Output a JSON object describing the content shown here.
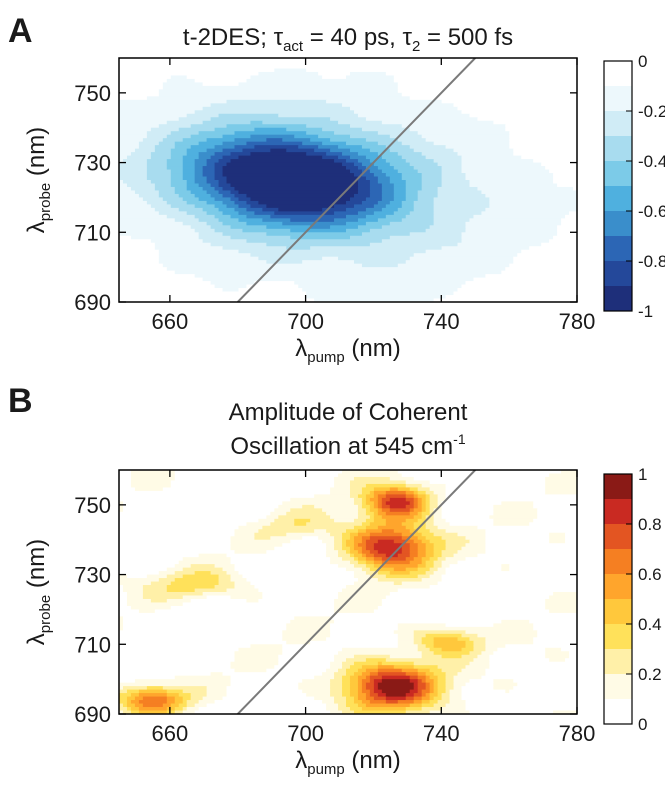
{
  "figure": {
    "panels": [
      {
        "letter": "A",
        "title": {
          "pre": "t-2DES; ",
          "tau_sym_1": "τ",
          "tau1_sub": "act",
          "tau1_val": " = 40 ps, ",
          "tau_sym_2": "τ",
          "tau2_sub": "2",
          "tau2_val": " = 500 fs"
        },
        "xlabel": {
          "sym": "λ",
          "sub": "pump",
          "unit": " (nm)"
        },
        "ylabel": {
          "sym": "λ",
          "sub": "probe",
          "unit": " (nm)"
        }
      },
      {
        "letter": "B",
        "title": {
          "line1": "Amplitude of Coherent",
          "line2_pre": "Oscillation at 545 cm",
          "line2_sup": "-1"
        },
        "xlabel": {
          "sym": "λ",
          "sub": "pump",
          "unit": " (nm)"
        },
        "ylabel": {
          "sym": "λ",
          "sub": "probe",
          "unit": " (nm)"
        }
      }
    ]
  },
  "chart_data": [
    {
      "type": "heatmap",
      "subtype": "filled-contour",
      "panel": "A",
      "x_ticks": [
        "660",
        "700",
        "740",
        "780"
      ],
      "y_ticks": [
        "750",
        "730",
        "710",
        "690"
      ],
      "xlim": [
        645,
        780
      ],
      "ylim": [
        690,
        760
      ],
      "colorbar": {
        "ticks": [
          "0",
          "-0.2",
          "-0.4",
          "-0.6",
          "-0.8",
          "-1"
        ],
        "range": [
          -1,
          0
        ],
        "colors": [
          "#1e2f7a",
          "#24489a",
          "#2c66b5",
          "#3a8ecb",
          "#4fb0df",
          "#7ccbe8",
          "#a8dcef",
          "#d0ecf6",
          "#edf8fc",
          "#ffffff"
        ]
      },
      "features": [
        {
          "kind": "minimum",
          "x": 695,
          "y": 725,
          "value": -1.0,
          "sx": 20,
          "sy": 9,
          "tilt": 0.15
        },
        {
          "kind": "broad-negative",
          "x": 705,
          "y": 723,
          "value": -0.3,
          "sx": 45,
          "sy": 22,
          "tilt": 0.2
        }
      ],
      "diagonal": {
        "x": [
          680,
          750
        ],
        "y": [
          690,
          760
        ]
      }
    },
    {
      "type": "heatmap",
      "subtype": "filled-contour",
      "panel": "B",
      "x_ticks": [
        "660",
        "700",
        "740",
        "780"
      ],
      "y_ticks": [
        "750",
        "730",
        "710",
        "690"
      ],
      "xlim": [
        645,
        780
      ],
      "ylim": [
        690,
        760
      ],
      "colorbar": {
        "ticks": [
          "1",
          "0.8",
          "0.6",
          "0.4",
          "0.2",
          "0"
        ],
        "range": [
          0,
          1
        ],
        "colors": [
          "#ffffff",
          "#fffbe6",
          "#fff0a8",
          "#ffe15a",
          "#ffc83c",
          "#ffa52c",
          "#f57f22",
          "#e35522",
          "#c92a22",
          "#8a1a16"
        ]
      },
      "features": [
        {
          "kind": "peak",
          "x": 725,
          "y": 698,
          "value": 0.92
        },
        {
          "kind": "peak",
          "x": 725,
          "y": 738,
          "value": 0.88
        },
        {
          "kind": "peak",
          "x": 727,
          "y": 751,
          "value": 0.78
        },
        {
          "kind": "peak",
          "x": 655,
          "y": 694,
          "value": 0.62
        },
        {
          "kind": "peak",
          "x": 742,
          "y": 711,
          "value": 0.45
        },
        {
          "kind": "peak",
          "x": 668,
          "y": 727,
          "value": 0.3
        },
        {
          "kind": "peak",
          "x": 698,
          "y": 744,
          "value": 0.2
        }
      ],
      "diagonal": {
        "x": [
          680,
          750
        ],
        "y": [
          690,
          760
        ]
      }
    }
  ]
}
